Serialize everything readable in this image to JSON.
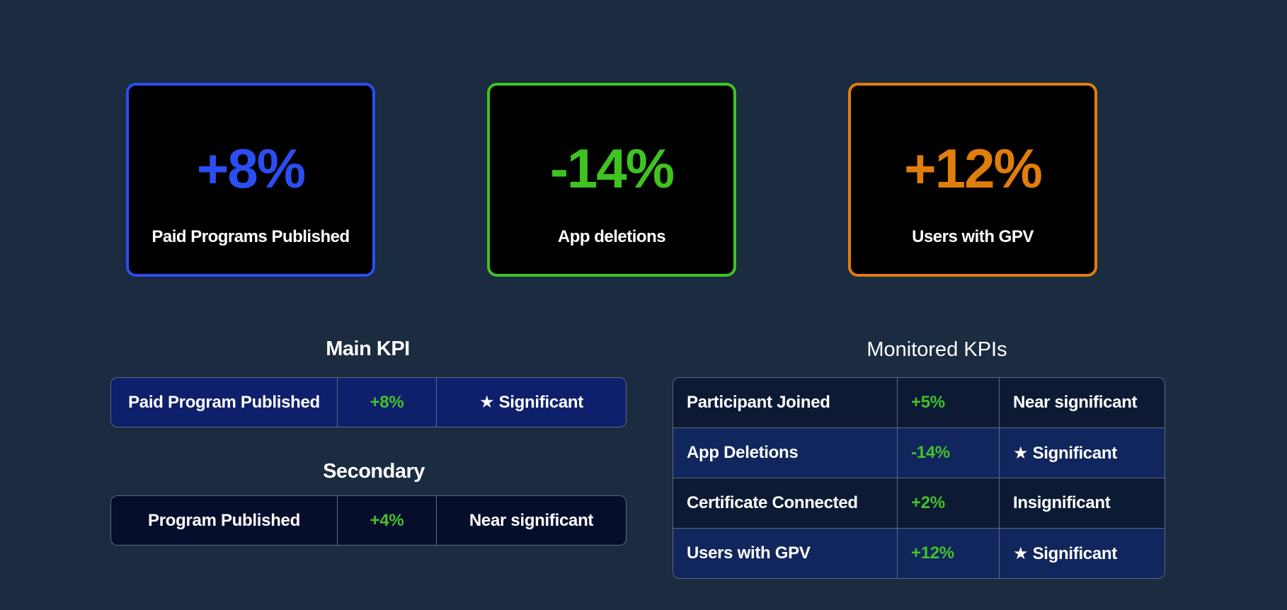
{
  "kpi_cards": [
    {
      "value": "+8%",
      "label": "Paid Programs Published",
      "color": "#2b4ef0"
    },
    {
      "value": "-14%",
      "label": "App deletions",
      "color": "#3ec421"
    },
    {
      "value": "+12%",
      "label": "Users with GPV",
      "color": "#e07d0c"
    }
  ],
  "main_kpi": {
    "title": "Main KPI",
    "row": {
      "metric": "Paid Program Published",
      "change": "+8%",
      "status": "★ Significant"
    }
  },
  "secondary": {
    "title": "Secondary",
    "row": {
      "metric": "Program Published",
      "change": "+4%",
      "status": "Near significant"
    }
  },
  "monitored": {
    "title": "Monitored KPIs",
    "rows": [
      {
        "metric": "Participant Joined",
        "change": "+5%",
        "status": "Near significant"
      },
      {
        "metric": "App Deletions",
        "change": "-14%",
        "status": "★ Significant"
      },
      {
        "metric": "Certificate Connected",
        "change": "+2%",
        "status": "Insignificant"
      },
      {
        "metric": "Users with GPV",
        "change": "+12%",
        "status": "★ Significant"
      }
    ]
  },
  "colors": {
    "background": "#1b2b40",
    "positive_change": "#42c22a",
    "table_border": "#5d6b82"
  }
}
